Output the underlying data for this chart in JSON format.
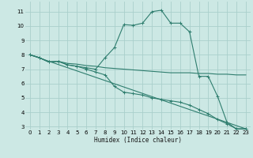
{
  "xlabel": "Humidex (Indice chaleur)",
  "xlim": [
    -0.5,
    23.5
  ],
  "ylim": [
    2.8,
    11.7
  ],
  "yticks": [
    3,
    4,
    5,
    6,
    7,
    8,
    9,
    10,
    11
  ],
  "xticks": [
    0,
    1,
    2,
    3,
    4,
    5,
    6,
    7,
    8,
    9,
    10,
    11,
    12,
    13,
    14,
    15,
    16,
    17,
    18,
    19,
    20,
    21,
    22,
    23
  ],
  "background_color": "#cce8e4",
  "grid_color": "#aacfcb",
  "line_color": "#2e7d6e",
  "curves": [
    {
      "x": [
        0,
        1,
        2,
        3,
        4,
        5,
        6,
        7,
        8,
        9,
        10,
        11,
        12,
        13,
        14,
        15,
        16,
        17,
        18,
        19,
        20,
        21,
        22,
        23
      ],
      "y": [
        8.0,
        7.8,
        7.5,
        7.55,
        7.3,
        7.2,
        7.1,
        7.0,
        7.8,
        8.5,
        10.1,
        10.05,
        10.2,
        11.0,
        11.1,
        10.2,
        10.2,
        9.6,
        6.5,
        6.5,
        5.1,
        3.3,
        2.85,
        2.85
      ],
      "markers": true
    },
    {
      "x": [
        0,
        1,
        2,
        3,
        4,
        5,
        6,
        7,
        8,
        9,
        10,
        11,
        12,
        13,
        14,
        15,
        16,
        17,
        18,
        19,
        20,
        21,
        22,
        23
      ],
      "y": [
        8.0,
        7.8,
        7.5,
        7.55,
        7.4,
        7.35,
        7.25,
        7.2,
        7.1,
        7.05,
        7.0,
        6.95,
        6.9,
        6.85,
        6.8,
        6.75,
        6.75,
        6.75,
        6.7,
        6.7,
        6.65,
        6.65,
        6.6,
        6.6
      ],
      "markers": false
    },
    {
      "x": [
        0,
        1,
        2,
        3,
        4,
        5,
        6,
        7,
        8,
        9,
        10,
        11,
        12,
        13,
        14,
        15,
        16,
        17,
        18,
        19,
        20,
        21,
        22,
        23
      ],
      "y": [
        8.0,
        7.8,
        7.5,
        7.55,
        7.3,
        7.2,
        7.0,
        6.8,
        6.6,
        5.8,
        5.4,
        5.3,
        5.2,
        5.0,
        4.9,
        4.8,
        4.7,
        4.5,
        4.2,
        3.9,
        3.5,
        3.2,
        2.85,
        2.85
      ],
      "markers": true
    },
    {
      "x": [
        0,
        23
      ],
      "y": [
        8.0,
        2.85
      ],
      "markers": false
    }
  ]
}
